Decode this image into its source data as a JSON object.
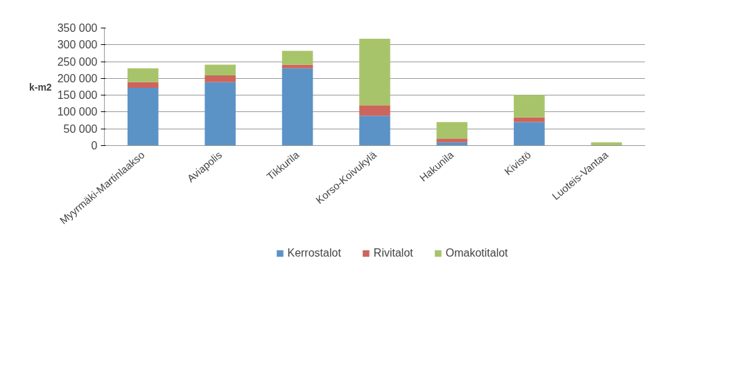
{
  "chart_data": {
    "type": "bar",
    "stacked": true,
    "ylabel": "k-m2",
    "categories": [
      "Myyrmäki-Martinlaakso",
      "Aviapolis",
      "Tikkurila",
      "Korso-Koivukylä",
      "Hakunila",
      "Kivistö",
      "Luoteis-Vantaa"
    ],
    "series": [
      {
        "name": "Kerrostalot",
        "color": "#5b93c7",
        "values": [
          172000,
          189000,
          230000,
          89000,
          10000,
          70000,
          0
        ]
      },
      {
        "name": "Rivitalot",
        "color": "#cd655c",
        "values": [
          17000,
          20000,
          11000,
          31000,
          11000,
          14000,
          0
        ]
      },
      {
        "name": "Omakotitalot",
        "color": "#a8c46a",
        "values": [
          41000,
          32000,
          41000,
          198000,
          49000,
          67000,
          10000
        ]
      }
    ],
    "ylim": [
      0,
      350000
    ],
    "yticks": [
      {
        "value": 0,
        "label": "0"
      },
      {
        "value": 50000,
        "label": "50 000"
      },
      {
        "value": 100000,
        "label": "100 000"
      },
      {
        "value": 150000,
        "label": "150 000"
      },
      {
        "value": 200000,
        "label": "200 000"
      },
      {
        "value": 250000,
        "label": "250 000"
      },
      {
        "value": 300000,
        "label": "300 000"
      },
      {
        "value": 350000,
        "label": "350 000"
      }
    ],
    "grid": "y",
    "legend": "bottom"
  }
}
